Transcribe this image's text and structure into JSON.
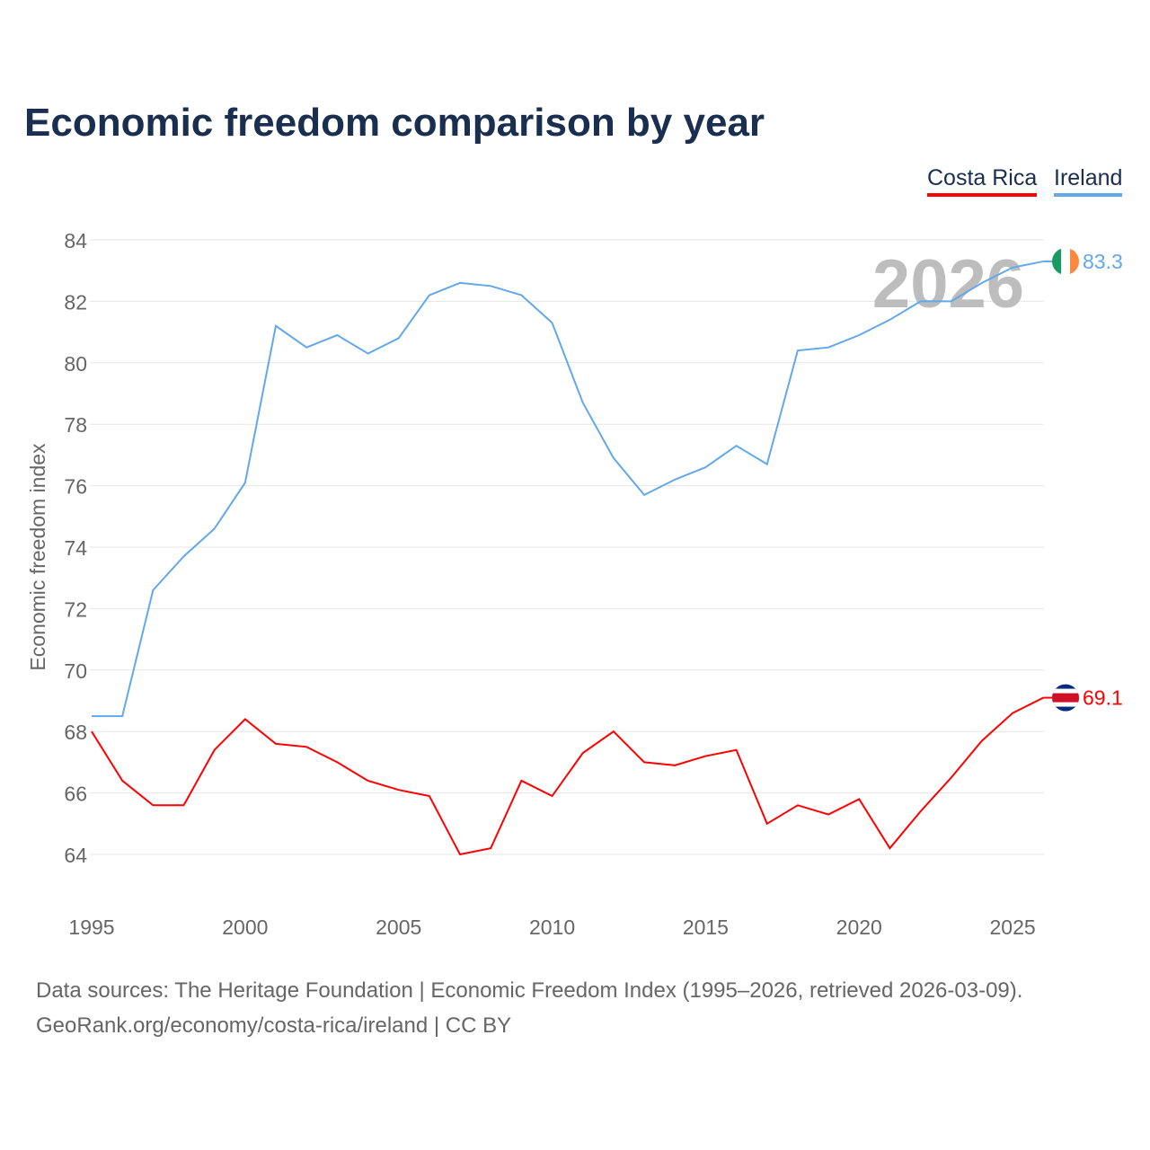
{
  "title": "Economic freedom comparison by year",
  "legend": [
    {
      "label": "Costa Rica",
      "color": "#ff0000"
    },
    {
      "label": "Ireland",
      "color": "#63a8ea"
    }
  ],
  "footer": {
    "line1": "Data sources: The Heritage Foundation | Economic Freedom Index (1995–2026, retrieved 2026-03-09).",
    "line2": "GeoRank.org/economy/costa-rica/ireland | CC BY"
  },
  "chart_data": {
    "type": "line",
    "title": "Economic freedom comparison by year",
    "ylabel": "Economic freedom index",
    "xlabel": "",
    "year_watermark": "2026",
    "xlim": [
      1995,
      2026
    ],
    "ylim": [
      62.5,
      85
    ],
    "xticks": [
      1995,
      2000,
      2005,
      2010,
      2015,
      2020,
      2025
    ],
    "yticks": [
      64,
      66,
      68,
      70,
      72,
      74,
      76,
      78,
      80,
      82,
      84
    ],
    "grid": true,
    "legend_position": "top-right",
    "x": [
      1995,
      1996,
      1997,
      1998,
      1999,
      2000,
      2001,
      2002,
      2003,
      2004,
      2005,
      2006,
      2007,
      2008,
      2009,
      2010,
      2011,
      2012,
      2013,
      2014,
      2015,
      2016,
      2017,
      2018,
      2019,
      2020,
      2021,
      2022,
      2023,
      2024,
      2025,
      2026
    ],
    "series": [
      {
        "name": "Ireland",
        "color": "#63a8ea",
        "end_label": "83.3",
        "values": [
          68.5,
          68.5,
          72.6,
          73.7,
          74.6,
          76.1,
          81.2,
          80.5,
          80.9,
          80.3,
          80.8,
          82.2,
          82.6,
          82.5,
          82.2,
          81.3,
          78.7,
          76.9,
          75.7,
          76.2,
          76.6,
          77.3,
          76.7,
          80.4,
          80.5,
          80.9,
          81.4,
          82.0,
          82.0,
          82.6,
          83.1,
          83.3
        ]
      },
      {
        "name": "Costa Rica",
        "color": "#ff0000",
        "end_label": "69.1",
        "values": [
          68.0,
          66.4,
          65.6,
          65.6,
          67.4,
          68.4,
          67.6,
          67.5,
          67.0,
          66.4,
          66.1,
          65.9,
          64.0,
          64.2,
          66.4,
          65.9,
          67.3,
          68.0,
          67.0,
          66.9,
          67.2,
          67.4,
          65.0,
          65.6,
          65.3,
          65.8,
          64.2,
          65.4,
          66.5,
          67.7,
          68.6,
          69.1
        ]
      }
    ]
  }
}
